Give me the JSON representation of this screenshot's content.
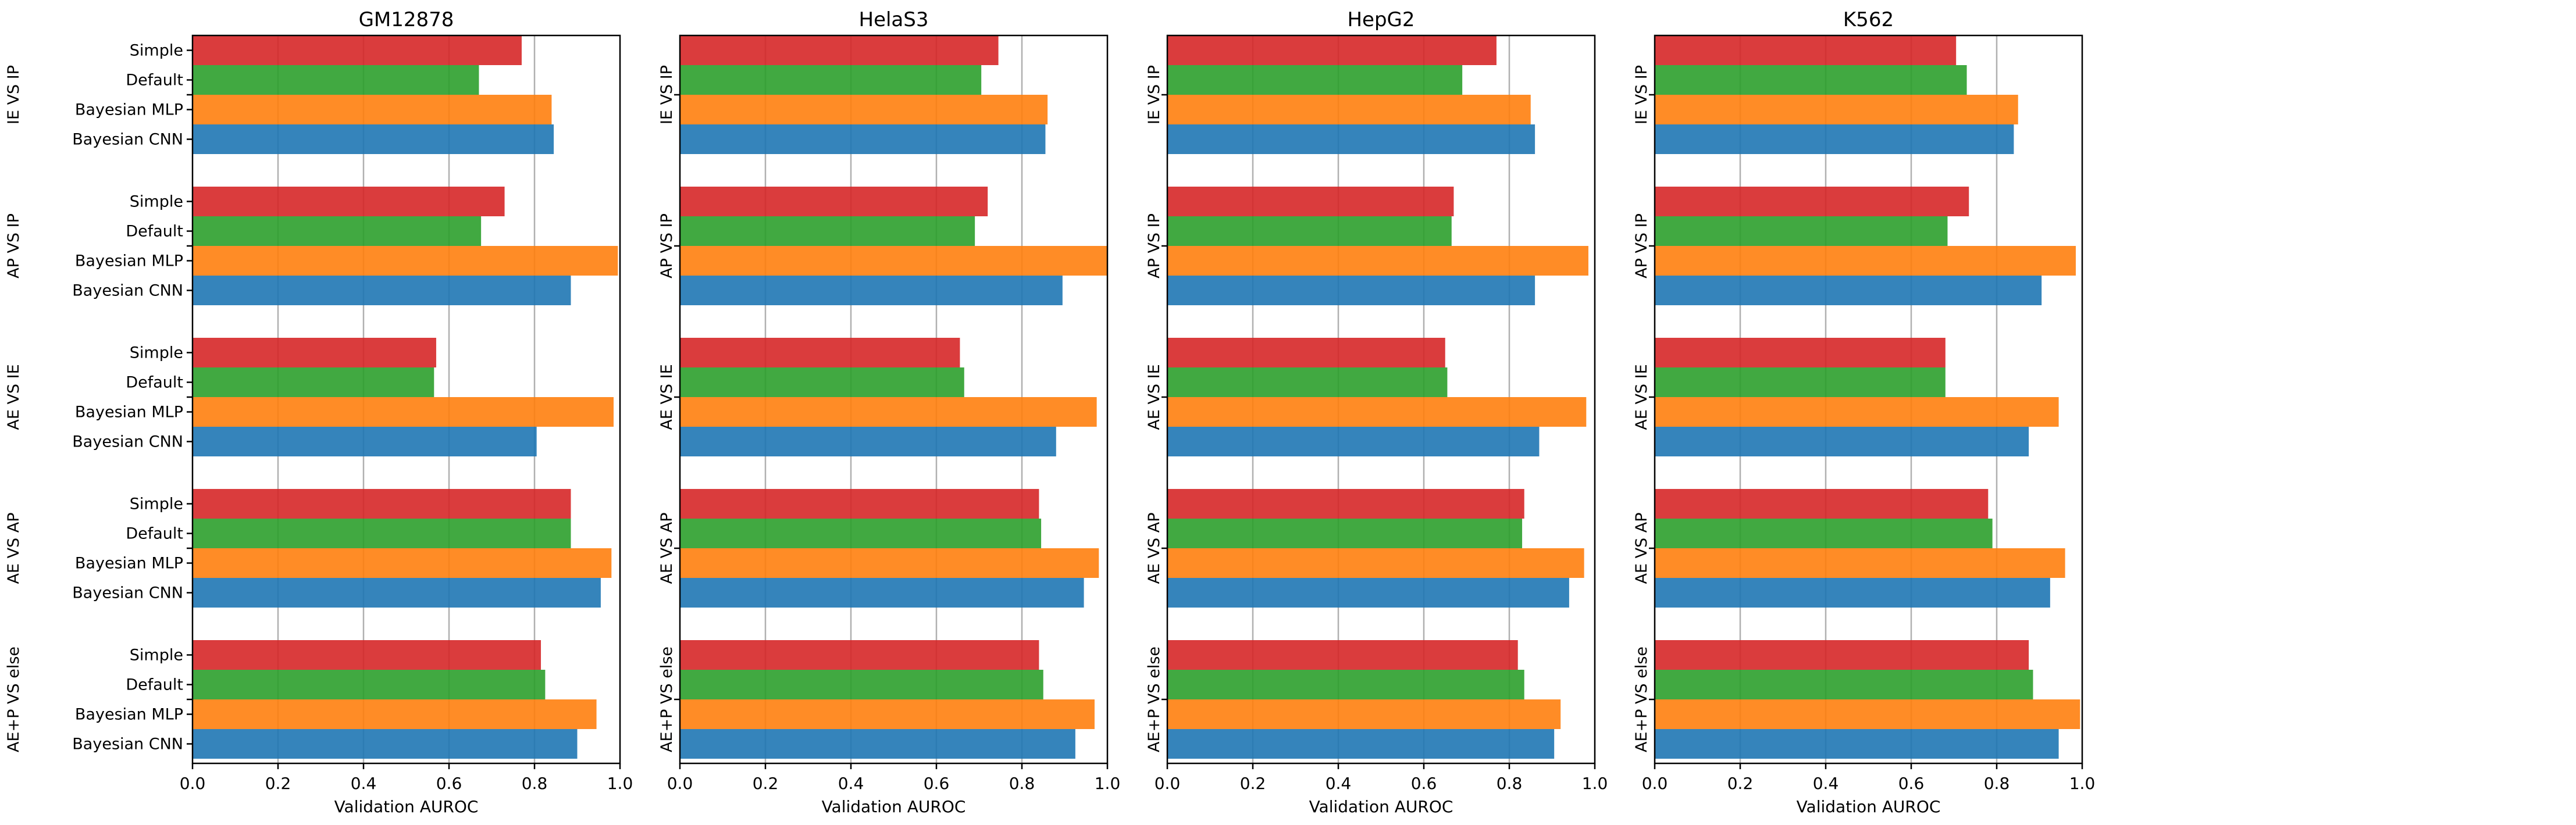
{
  "figure": {
    "xlabel": "Validation AUROC",
    "xticks": [
      "0.0",
      "0.2",
      "0.4",
      "0.6",
      "0.8",
      "1.0"
    ]
  },
  "chart_data": {
    "type": "bar",
    "orientation": "horizontal",
    "groups": [
      "IE VS IP",
      "AP VS IP",
      "AE VS IE",
      "AE VS AP",
      "AE+P VS else"
    ],
    "series": [
      {
        "name": "Simple",
        "color": "#d62728"
      },
      {
        "name": "Default",
        "color": "#2ca02c"
      },
      {
        "name": "Bayesian MLP",
        "color": "#ff7f0e"
      },
      {
        "name": "Bayesian CNN",
        "color": "#1f77b4"
      }
    ],
    "xlim": [
      0.0,
      1.0
    ],
    "grid": "vertical",
    "panels": [
      {
        "title": "GM12878",
        "values": {
          "IE VS IP": [
            0.77,
            0.67,
            0.84,
            0.845
          ],
          "AP VS IP": [
            0.73,
            0.675,
            0.995,
            0.885
          ],
          "AE VS IE": [
            0.57,
            0.565,
            0.985,
            0.805
          ],
          "AE VS AP": [
            0.885,
            0.885,
            0.98,
            0.955
          ],
          "AE+P VS else": [
            0.815,
            0.825,
            0.945,
            0.9
          ]
        }
      },
      {
        "title": "HelaS3",
        "values": {
          "IE VS IP": [
            0.745,
            0.705,
            0.86,
            0.855
          ],
          "AP VS IP": [
            0.72,
            0.69,
            1.0,
            0.895
          ],
          "AE VS IE": [
            0.655,
            0.665,
            0.975,
            0.88
          ],
          "AE VS AP": [
            0.84,
            0.845,
            0.98,
            0.945
          ],
          "AE+P VS else": [
            0.84,
            0.85,
            0.97,
            0.925
          ]
        }
      },
      {
        "title": "HepG2",
        "values": {
          "IE VS IP": [
            0.77,
            0.69,
            0.85,
            0.86
          ],
          "AP VS IP": [
            0.67,
            0.665,
            0.985,
            0.86
          ],
          "AE VS IE": [
            0.65,
            0.655,
            0.98,
            0.87
          ],
          "AE VS AP": [
            0.835,
            0.83,
            0.975,
            0.94
          ],
          "AE+P VS else": [
            0.82,
            0.835,
            0.92,
            0.905
          ]
        }
      },
      {
        "title": "K562",
        "values": {
          "IE VS IP": [
            0.705,
            0.73,
            0.85,
            0.84
          ],
          "AP VS IP": [
            0.735,
            0.685,
            0.985,
            0.905
          ],
          "AE VS IE": [
            0.68,
            0.68,
            0.945,
            0.875
          ],
          "AE VS AP": [
            0.78,
            0.79,
            0.96,
            0.925
          ],
          "AE+P VS else": [
            0.875,
            0.885,
            0.995,
            0.945
          ]
        }
      }
    ]
  }
}
